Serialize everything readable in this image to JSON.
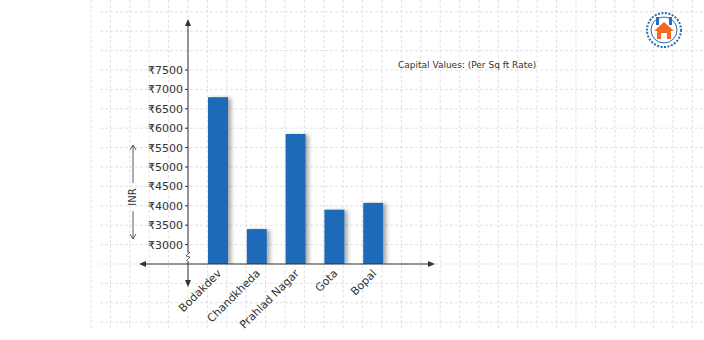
{
  "chart_data": {
    "type": "bar",
    "title": "Capital Values: (Per Sq ft Rate)",
    "y_label": "INR",
    "categories": [
      "Bodakdev",
      "Chandkheda",
      "Prahlad Nagar",
      "Gota",
      "Bopal"
    ],
    "values": [
      6800,
      3400,
      5850,
      3900,
      4075
    ],
    "color": "#1f6bb8",
    "ylim": [
      2500,
      7500
    ],
    "yticks": [
      {
        "value": 3000,
        "label": "₹3000"
      },
      {
        "value": 3500,
        "label": "₹3500"
      },
      {
        "value": 4000,
        "label": "₹4000"
      },
      {
        "value": 4500,
        "label": "₹4500"
      },
      {
        "value": 5000,
        "label": "₹5000"
      },
      {
        "value": 5500,
        "label": "₹5500"
      },
      {
        "value": 6000,
        "label": "₹6000"
      },
      {
        "value": 6500,
        "label": "₹6500"
      },
      {
        "value": 7000,
        "label": "₹7000"
      },
      {
        "value": 7500,
        "label": "₹7500"
      }
    ],
    "grid": true
  }
}
